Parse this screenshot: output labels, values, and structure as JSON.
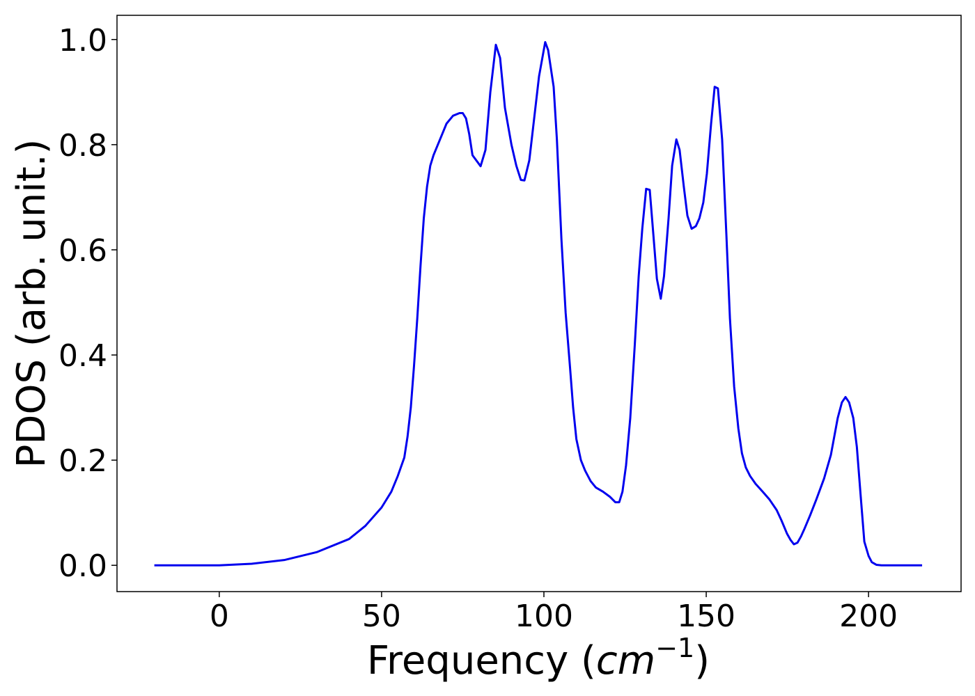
{
  "chart_data": {
    "type": "line",
    "xlabel": [
      "Frequency (",
      "cm",
      "−1",
      ")"
    ],
    "ylabel": "PDOS (arb. unit.)",
    "xlim": [
      -31.5,
      228.5
    ],
    "ylim": [
      -0.05,
      1.046
    ],
    "xticks": [
      0,
      50,
      100,
      150,
      200
    ],
    "yticks": [
      {
        "value": 0,
        "label": "0.0"
      },
      0.2,
      0.4,
      0.6,
      0.8,
      {
        "value": 1,
        "label": "1.0"
      }
    ],
    "x": [
      -20,
      0,
      10,
      20,
      30,
      40,
      45,
      50,
      53,
      55,
      57,
      58,
      59,
      60,
      61,
      62,
      63,
      64,
      65,
      66,
      68,
      70,
      72,
      74,
      75,
      76,
      77,
      78,
      80.5,
      82,
      83.5,
      85.2,
      86.5,
      88,
      90,
      91.5,
      92.9,
      94,
      95.5,
      97,
      98.5,
      100.4,
      101.3,
      103,
      104,
      105.4,
      106.7,
      108,
      109,
      110,
      111.4,
      112.7,
      114.4,
      116,
      118.2,
      120.4,
      122,
      123.2,
      124.2,
      125.3,
      126.6,
      128,
      129.2,
      130.3,
      131.5,
      132.6,
      133.7,
      134.8,
      136,
      137,
      138.4,
      139.5,
      140.8,
      141.8,
      143.1,
      144.2,
      145.5,
      146.8,
      147.9,
      149.1,
      150.2,
      151.5,
      152.6,
      153.6,
      154.9,
      156.2,
      157.3,
      158.6,
      159.9,
      161,
      162.2,
      163.5,
      165.2,
      167.4,
      169.5,
      171.7,
      173.2,
      174.9,
      176,
      177,
      178.1,
      179.2,
      180.3,
      182,
      183.9,
      186.3,
      188.4,
      190.5,
      191.8,
      192.9,
      194,
      195.3,
      196.4,
      197.6,
      198.7,
      200,
      201,
      202.4,
      204,
      216.5
    ],
    "series": [
      {
        "color": "#0000ee",
        "values": [
          0,
          0,
          0.003,
          0.01,
          0.025,
          0.05,
          0.075,
          0.11,
          0.14,
          0.17,
          0.205,
          0.245,
          0.3,
          0.38,
          0.47,
          0.57,
          0.66,
          0.72,
          0.76,
          0.78,
          0.81,
          0.84,
          0.855,
          0.86,
          0.86,
          0.85,
          0.82,
          0.78,
          0.759,
          0.79,
          0.9,
          0.99,
          0.965,
          0.87,
          0.8,
          0.76,
          0.733,
          0.732,
          0.77,
          0.85,
          0.93,
          0.995,
          0.98,
          0.91,
          0.81,
          0.62,
          0.48,
          0.38,
          0.3,
          0.24,
          0.2,
          0.18,
          0.16,
          0.148,
          0.14,
          0.13,
          0.12,
          0.12,
          0.14,
          0.19,
          0.28,
          0.42,
          0.55,
          0.64,
          0.716,
          0.714,
          0.63,
          0.545,
          0.507,
          0.55,
          0.66,
          0.76,
          0.81,
          0.79,
          0.72,
          0.665,
          0.64,
          0.645,
          0.66,
          0.69,
          0.745,
          0.84,
          0.91,
          0.907,
          0.81,
          0.63,
          0.47,
          0.34,
          0.26,
          0.213,
          0.186,
          0.17,
          0.155,
          0.14,
          0.125,
          0.105,
          0.085,
          0.06,
          0.048,
          0.04,
          0.043,
          0.055,
          0.07,
          0.095,
          0.125,
          0.165,
          0.21,
          0.28,
          0.31,
          0.32,
          0.31,
          0.28,
          0.225,
          0.13,
          0.045,
          0.018,
          0.006,
          0.001,
          0,
          0
        ]
      }
    ]
  }
}
